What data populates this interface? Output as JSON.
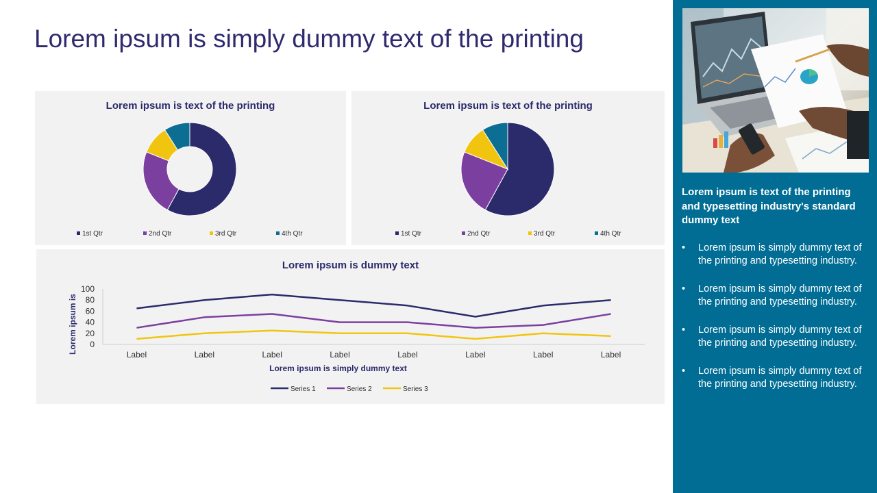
{
  "slide": {
    "title": "Lorem ipsum is simply dummy text of the printing"
  },
  "colors": {
    "series1": "#2b2a6b",
    "series2": "#7b3fa0",
    "series3": "#f1c50f",
    "series4": "#0c6e92",
    "sidebar": "#016d94",
    "panel": "#f2f2f2"
  },
  "sidebar": {
    "photo_icon": "business-analytics-photo",
    "heading": "Lorem ipsum is text of the printing and typesetting industry's standard dummy text",
    "bullet_glyph": "•",
    "bullets": [
      "Lorem ipsum is simply dummy text of the printing and typesetting industry.",
      "Lorem ipsum is simply dummy text of the printing and typesetting industry.",
      "Lorem ipsum is simply dummy text of the printing and typesetting industry.",
      "Lorem ipsum is simply dummy text of the printing and typesetting industry."
    ]
  },
  "chart_data": [
    {
      "type": "pie",
      "variant": "doughnut",
      "title": "Lorem ipsum is text of the printing",
      "categories": [
        "1st Qtr",
        "2nd Qtr",
        "3rd Qtr",
        "4th Qtr"
      ],
      "values": [
        58,
        23,
        10,
        9
      ],
      "legend": "bottom"
    },
    {
      "type": "pie",
      "title": "Lorem ipsum is text of the printing",
      "categories": [
        "1st Qtr",
        "2nd Qtr",
        "3rd Qtr",
        "4th Qtr"
      ],
      "values": [
        58,
        23,
        10,
        9
      ],
      "legend": "bottom"
    },
    {
      "type": "line",
      "title": "Lorem ipsum is dummy text",
      "xlabel": "Lorem ipsum is simply dummy text",
      "ylabel": "Lorem ipsum is",
      "categories": [
        "Label",
        "Label",
        "Label",
        "Label",
        "Label",
        "Label",
        "Label",
        "Label"
      ],
      "ylim": [
        0,
        100
      ],
      "yticks": [
        0,
        20,
        40,
        60,
        80,
        100
      ],
      "grid": false,
      "legend": "bottom",
      "series": [
        {
          "name": "Series 1",
          "values": [
            65,
            80,
            90,
            80,
            70,
            50,
            70,
            80
          ]
        },
        {
          "name": "Series 2",
          "values": [
            30,
            49,
            55,
            40,
            40,
            30,
            35,
            55
          ]
        },
        {
          "name": "Series 3",
          "values": [
            10,
            20,
            25,
            20,
            20,
            10,
            20,
            15
          ]
        }
      ]
    }
  ]
}
